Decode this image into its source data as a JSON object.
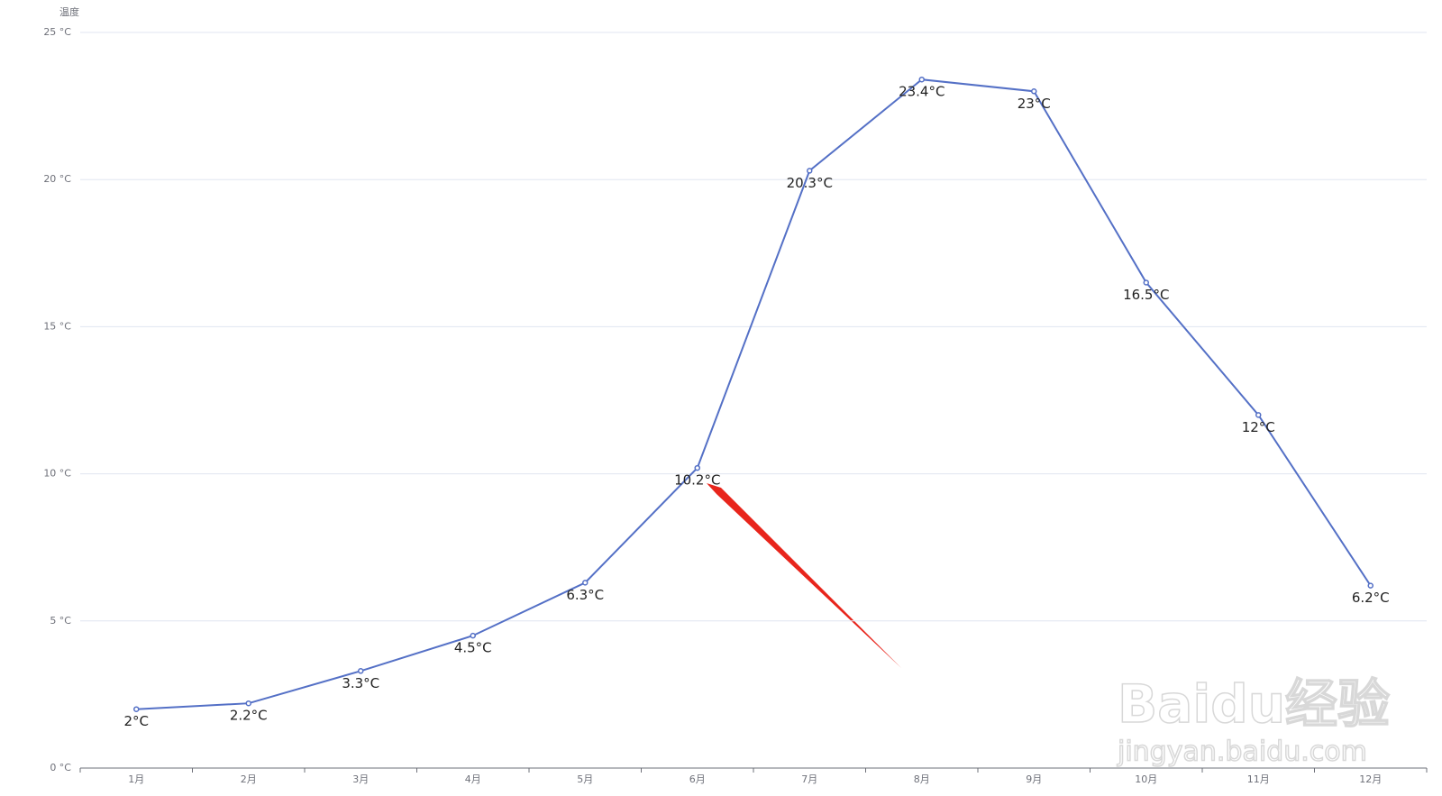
{
  "chart_data": {
    "type": "line",
    "y_axis_label": "温度",
    "categories": [
      "1月",
      "2月",
      "3月",
      "4月",
      "5月",
      "6月",
      "7月",
      "8月",
      "9月",
      "10月",
      "11月",
      "12月"
    ],
    "series": [
      {
        "name": "温度",
        "color": "#5470c6",
        "values": [
          2,
          2.2,
          3.3,
          4.5,
          6.3,
          10.2,
          20.3,
          23.4,
          23,
          16.5,
          12,
          6.2
        ],
        "value_labels": [
          "2°C",
          "2.2°C",
          "3.3°C",
          "4.5°C",
          "6.3°C",
          "10.2°C",
          "20.3°C",
          "23.4°C",
          "23°C",
          "16.5°C",
          "12°C",
          "6.2°C"
        ]
      }
    ],
    "ylim": [
      0,
      25
    ],
    "yticks": [
      {
        "value": 0,
        "label": "0 °C"
      },
      {
        "value": 5,
        "label": "5 °C"
      },
      {
        "value": 10,
        "label": "10 °C"
      },
      {
        "value": 15,
        "label": "15 °C"
      },
      {
        "value": 20,
        "label": "20 °C"
      },
      {
        "value": 25,
        "label": "25 °C"
      }
    ],
    "grid": true
  },
  "watermark": {
    "brand": "Baidu经验",
    "url": "jingyan.baidu.com"
  }
}
